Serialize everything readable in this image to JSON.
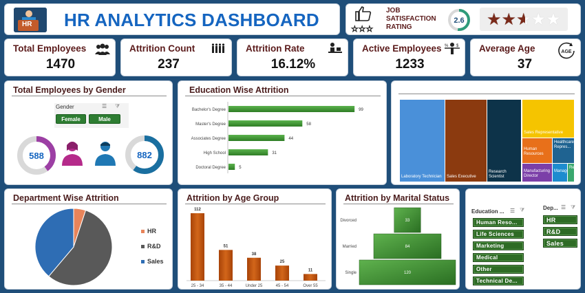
{
  "header": {
    "logo_text": "HR",
    "title": "HR ANALYTICS DASHBOARD"
  },
  "job_satisfaction": {
    "label_line1": "JOB",
    "label_line2": "SATISFACTION",
    "label_line3": "RATING",
    "rating": "2.6",
    "rating_fraction": 0.52,
    "stars_filled": 2.6,
    "stars_total": 5
  },
  "kpis": [
    {
      "label": "Total Employees",
      "value": "1470",
      "icon": "people-group-icon"
    },
    {
      "label": "Attrition Count",
      "value": "237",
      "icon": "people-leaving-icon"
    },
    {
      "label": "Attrition Rate",
      "value": "16.12%",
      "icon": "person-at-desk-icon"
    },
    {
      "label": "Active Employees",
      "value": "1233",
      "icon": "balance-person-icon"
    },
    {
      "label": "Average Age",
      "value": "37",
      "icon": "age-arrow-icon"
    }
  ],
  "gender": {
    "title": "Total Employees by Gender",
    "slicer_label": "Gender",
    "options": [
      "Female",
      "Male"
    ],
    "female_value": "588",
    "male_value": "882",
    "female_fraction": 0.4,
    "male_fraction": 0.6
  },
  "education": {
    "title": "Education Wise Attrition",
    "chart_data": {
      "type": "bar",
      "orientation": "horizontal",
      "categories": [
        "Bachelor's Degree",
        "Master's Degree",
        "Associates Degree",
        "High School",
        "Doctoral Degree"
      ],
      "values": [
        99,
        58,
        44,
        31,
        5
      ]
    }
  },
  "treemap": {
    "items": [
      {
        "label": "Laboratory Technician",
        "color": "#4a90d9"
      },
      {
        "label": "Sales Executive",
        "color": "#8b3a0f"
      },
      {
        "label": "Research Scientist",
        "color": "#0d3349"
      },
      {
        "label": "Sales Representative",
        "color": "#f5c400"
      },
      {
        "label": "Human Resources",
        "color": "#e8701a"
      },
      {
        "label": "Healthcare Repres...",
        "color": "#1f6391"
      },
      {
        "label": "Manufacturing Director",
        "color": "#7b3fa8"
      },
      {
        "label": "Manager",
        "color": "#1d8ccf"
      },
      {
        "label": "Re",
        "color": "#3aa86f"
      }
    ]
  },
  "department": {
    "title": "Department Wise Attrition",
    "legend": [
      "HR",
      "R&D",
      "Sales"
    ],
    "chart_data": {
      "type": "pie",
      "categories": [
        "HR",
        "R&D",
        "Sales"
      ],
      "values": [
        12,
        133,
        92
      ],
      "colors": [
        "#e8845a",
        "#595959",
        "#2e6db4"
      ]
    }
  },
  "age_group": {
    "title": "Attrition by Age Group",
    "chart_data": {
      "type": "bar",
      "categories": [
        "25 - 34",
        "35 - 44",
        "Under 25",
        "45 - 54",
        "Over 55"
      ],
      "values": [
        112,
        51,
        38,
        25,
        11
      ]
    }
  },
  "marital": {
    "title": "Attrition by Marital Status",
    "chart_data": {
      "type": "bar",
      "orientation": "horizontal-centered",
      "categories": [
        "Divorced",
        "Married",
        "Single"
      ],
      "values": [
        33,
        84,
        120
      ]
    }
  },
  "slicers": {
    "education": {
      "label": "Education ...",
      "items": [
        "Human Reso...",
        "Life Sciences",
        "Marketing",
        "Medical",
        "Other",
        "Technical De..."
      ]
    },
    "department": {
      "label": "Dep...",
      "items": [
        "HR",
        "R&D",
        "Sales"
      ]
    }
  },
  "colors": {
    "background": "#1f4e79",
    "title_blue": "#1565c0",
    "dark_red_text": "#5a1a1a",
    "green_bar": "#3f9a33",
    "orange_bar": "#c05a12",
    "female_ring": "#9c3fa4",
    "male_ring": "#1a6fa0"
  }
}
